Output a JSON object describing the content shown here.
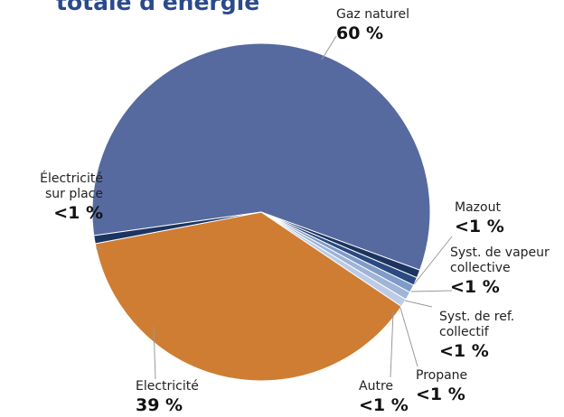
{
  "chart_data": {
    "type": "pie",
    "title": "totale d'énergie",
    "categories": [
      "Gaz naturel",
      "Mazout",
      "Syst. de vapeur collective",
      "Syst. de ref. collectif",
      "Propane",
      "Autre",
      "Electricité",
      "Électricité sur place"
    ],
    "values": [
      60,
      0.8,
      0.8,
      0.8,
      0.8,
      0.8,
      39,
      0.8
    ],
    "value_labels": [
      "60 %",
      "<1 %",
      "<1 %",
      "<1 %",
      "<1 %",
      "<1 %",
      "39 %",
      "<1 %"
    ],
    "colors": [
      "#566a9f",
      "#1c3461",
      "#2b4a82",
      "#7f9bc8",
      "#9fb4d8",
      "#bccbe6",
      "#cf7d33",
      "#1c3461"
    ]
  }
}
